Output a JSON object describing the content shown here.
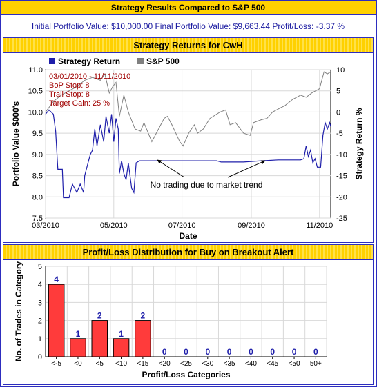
{
  "header": {
    "title": "Strategy Results Compared to S&P 500"
  },
  "summary": {
    "text": "Initial Portfolio Value: $10,000.00 Final Portfolio Value: $9,663.44 Profit/Loss: -3.37 %"
  },
  "colors": {
    "strategy": "#1e1eaa",
    "sp500": "#808080",
    "bar_fill": "#ff3b3b",
    "bar_label": "#1e1eaa",
    "annotation": "#a00000",
    "header_bg": "#ffd100",
    "border": "#2d2dbf"
  },
  "chart_data": [
    {
      "type": "line",
      "title": "Strategy Returns for CwH",
      "xlabel": "Date",
      "ylabel": "Portfolio Value $000's",
      "y2label": "Strategy Return %",
      "legend": {
        "placement": "top-left",
        "entries": [
          "Strategy Return",
          "S&P 500"
        ]
      },
      "x_ticks": [
        "03/2010",
        "05/2010",
        "07/2010",
        "09/2010",
        "11/2010"
      ],
      "x_tick_dates": [
        "2010-03-01",
        "2010-05-01",
        "2010-07-01",
        "2010-09-01",
        "2010-11-01"
      ],
      "xlim": [
        "2010-03-01",
        "2010-11-11"
      ],
      "ylim": [
        7.5,
        11.0
      ],
      "y_ticks": [
        "7.5",
        "8.0",
        "8.5",
        "9.0",
        "9.5",
        "10.0",
        "10.5",
        "11.0"
      ],
      "y2lim": [
        -25,
        10
      ],
      "y2_ticks": [
        "-25",
        "-20",
        "-15",
        "-10",
        "-5",
        "0",
        "5",
        "10"
      ],
      "grid": true,
      "info_box": [
        "03/01/2010 - 11/11/2010",
        "BoP Stop: 8",
        "Trail Stop: 8",
        "Target Gain: 25 %"
      ],
      "annotation": "No trading due to market trend",
      "series": [
        {
          "name": "Strategy Return",
          "points": [
            [
              "2010-03-01",
              9.95
            ],
            [
              "2010-03-04",
              10.05
            ],
            [
              "2010-03-08",
              9.95
            ],
            [
              "2010-03-10",
              9.55
            ],
            [
              "2010-03-12",
              8.65
            ],
            [
              "2010-03-16",
              8.65
            ],
            [
              "2010-03-17",
              7.98
            ],
            [
              "2010-03-22",
              7.98
            ],
            [
              "2010-03-25",
              8.3
            ],
            [
              "2010-03-29",
              8.1
            ],
            [
              "2010-04-01",
              8.3
            ],
            [
              "2010-04-04",
              8.1
            ],
            [
              "2010-04-05",
              8.5
            ],
            [
              "2010-04-08",
              8.8
            ],
            [
              "2010-04-10",
              9.0
            ],
            [
              "2010-04-12",
              9.1
            ],
            [
              "2010-04-14",
              9.6
            ],
            [
              "2010-04-16",
              9.2
            ],
            [
              "2010-04-19",
              9.7
            ],
            [
              "2010-04-22",
              9.3
            ],
            [
              "2010-04-24",
              9.9
            ],
            [
              "2010-04-27",
              9.5
            ],
            [
              "2010-04-29",
              9.95
            ],
            [
              "2010-05-01",
              9.3
            ],
            [
              "2010-05-03",
              9.85
            ],
            [
              "2010-05-05",
              9.6
            ],
            [
              "2010-05-06",
              8.55
            ],
            [
              "2010-05-08",
              8.85
            ],
            [
              "2010-05-10",
              8.55
            ],
            [
              "2010-05-12",
              8.4
            ],
            [
              "2010-05-14",
              8.8
            ],
            [
              "2010-05-17",
              8.2
            ],
            [
              "2010-05-19",
              8.1
            ],
            [
              "2010-05-21",
              8.8
            ],
            [
              "2010-05-24",
              8.85
            ],
            [
              "2010-06-01",
              8.85
            ],
            [
              "2010-07-01",
              8.85
            ],
            [
              "2010-08-01",
              8.85
            ],
            [
              "2010-08-05",
              8.82
            ],
            [
              "2010-08-25",
              8.82
            ],
            [
              "2010-09-10",
              8.85
            ],
            [
              "2010-09-25",
              8.87
            ],
            [
              "2010-10-15",
              8.87
            ],
            [
              "2010-10-18",
              8.9
            ],
            [
              "2010-10-20",
              9.2
            ],
            [
              "2010-10-22",
              8.95
            ],
            [
              "2010-10-24",
              9.1
            ],
            [
              "2010-10-26",
              8.8
            ],
            [
              "2010-10-28",
              8.9
            ],
            [
              "2010-10-30",
              8.7
            ],
            [
              "2010-11-02",
              8.7
            ],
            [
              "2010-11-04",
              9.45
            ],
            [
              "2010-11-06",
              9.75
            ],
            [
              "2010-11-08",
              9.6
            ],
            [
              "2010-11-10",
              9.75
            ],
            [
              "2010-11-11",
              9.66
            ]
          ]
        },
        {
          "name": "S&P 500",
          "points": [
            [
              "2010-03-01",
              10.0
            ],
            [
              "2010-03-08",
              10.25
            ],
            [
              "2010-03-15",
              10.4
            ],
            [
              "2010-03-22",
              10.5
            ],
            [
              "2010-03-29",
              10.6
            ],
            [
              "2010-04-05",
              10.75
            ],
            [
              "2010-04-12",
              10.82
            ],
            [
              "2010-04-19",
              10.75
            ],
            [
              "2010-04-23",
              10.9
            ],
            [
              "2010-04-27",
              10.45
            ],
            [
              "2010-04-30",
              10.6
            ],
            [
              "2010-05-03",
              10.7
            ],
            [
              "2010-05-06",
              9.9
            ],
            [
              "2010-05-10",
              10.4
            ],
            [
              "2010-05-14",
              10.0
            ],
            [
              "2010-05-20",
              9.6
            ],
            [
              "2010-05-25",
              9.55
            ],
            [
              "2010-05-28",
              9.75
            ],
            [
              "2010-06-04",
              9.3
            ],
            [
              "2010-06-10",
              9.6
            ],
            [
              "2010-06-15",
              9.85
            ],
            [
              "2010-06-18",
              9.9
            ],
            [
              "2010-06-22",
              9.7
            ],
            [
              "2010-06-29",
              9.3
            ],
            [
              "2010-07-02",
              9.2
            ],
            [
              "2010-07-07",
              9.5
            ],
            [
              "2010-07-12",
              9.7
            ],
            [
              "2010-07-15",
              9.5
            ],
            [
              "2010-07-20",
              9.6
            ],
            [
              "2010-07-26",
              9.85
            ],
            [
              "2010-08-04",
              10.0
            ],
            [
              "2010-08-09",
              10.05
            ],
            [
              "2010-08-13",
              9.7
            ],
            [
              "2010-08-18",
              9.75
            ],
            [
              "2010-08-25",
              9.5
            ],
            [
              "2010-08-31",
              9.45
            ],
            [
              "2010-09-03",
              9.75
            ],
            [
              "2010-09-10",
              9.82
            ],
            [
              "2010-09-15",
              9.85
            ],
            [
              "2010-09-20",
              10.0
            ],
            [
              "2010-09-27",
              10.1
            ],
            [
              "2010-10-01",
              10.15
            ],
            [
              "2010-10-08",
              10.3
            ],
            [
              "2010-10-15",
              10.4
            ],
            [
              "2010-10-20",
              10.35
            ],
            [
              "2010-10-25",
              10.45
            ],
            [
              "2010-11-01",
              10.55
            ],
            [
              "2010-11-05",
              10.95
            ],
            [
              "2010-11-08",
              10.9
            ],
            [
              "2010-11-11",
              10.95
            ]
          ]
        }
      ]
    },
    {
      "type": "bar",
      "title": "Profit/Loss Distribution for Buy on Breakout Alert",
      "xlabel": "Profit/Loss Categories",
      "ylabel": "No. of Trades in Category",
      "categories": [
        "<-5",
        "<0",
        "<5",
        "<10",
        "<15",
        "<20",
        "<25",
        "<30",
        "<35",
        "<40",
        "<45",
        "<50",
        "50+"
      ],
      "values": [
        4,
        1,
        2,
        1,
        2,
        0,
        0,
        0,
        0,
        0,
        0,
        0,
        0
      ],
      "ylim": [
        0,
        5
      ],
      "y_ticks": [
        "0",
        "1",
        "2",
        "3",
        "4",
        "5"
      ],
      "grid": true
    }
  ]
}
